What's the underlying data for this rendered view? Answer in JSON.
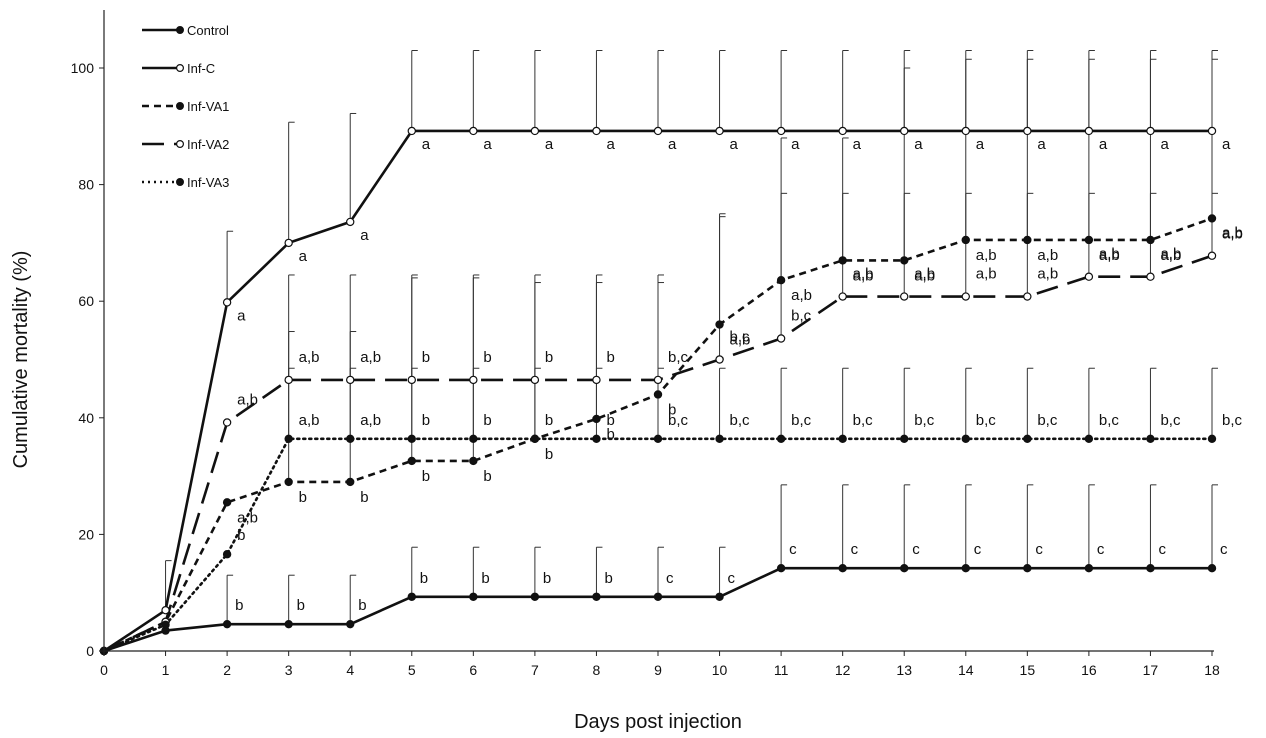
{
  "chart_data": {
    "type": "line",
    "title": "",
    "xlabel": "Days post injection",
    "ylabel": "Cumulative mortality (%)",
    "x": [
      0,
      1,
      2,
      3,
      4,
      5,
      6,
      7,
      8,
      9,
      10,
      11,
      12,
      13,
      14,
      15,
      16,
      17,
      18
    ],
    "xlim": [
      0,
      18
    ],
    "ylim": [
      0,
      100
    ],
    "yticks": [
      0,
      20,
      40,
      60,
      80,
      100
    ],
    "grid": false,
    "legend_position": "top-left",
    "series": [
      {
        "name": "Control",
        "line": "solid",
        "marker": "filled",
        "values": [
          0,
          3.5,
          4.6,
          4.6,
          4.6,
          9.3,
          9.3,
          9.3,
          9.3,
          9.3,
          9.3,
          14.2,
          14.2,
          14.2,
          14.2,
          14.2,
          14.2,
          14.2,
          14.2
        ],
        "error_upper": [
          null,
          null,
          13,
          13,
          13,
          17.8,
          17.8,
          17.8,
          17.8,
          17.8,
          17.8,
          28.5,
          28.5,
          28.5,
          28.5,
          28.5,
          28.5,
          28.5,
          28.5
        ],
        "labels": [
          null,
          null,
          "b",
          "b",
          "b",
          "b",
          "b",
          "b",
          "b",
          "c",
          "c",
          "c",
          "c",
          "c",
          "c",
          "c",
          "c",
          "c",
          "c"
        ]
      },
      {
        "name": "Inf-C",
        "line": "solid",
        "marker": "open",
        "values": [
          0,
          7,
          59.8,
          70,
          73.6,
          89.2,
          89.2,
          89.2,
          89.2,
          89.2,
          89.2,
          89.2,
          89.2,
          89.2,
          89.2,
          89.2,
          89.2,
          89.2,
          89.2
        ],
        "error_upper": [
          null,
          15.5,
          72,
          90.7,
          92.2,
          103,
          103,
          103,
          103,
          103,
          103,
          103,
          103,
          103,
          103,
          103,
          103,
          103,
          103
        ],
        "labels": [
          null,
          null,
          "a",
          "a",
          "a",
          "a",
          "a",
          "a",
          "a",
          "a",
          "a",
          "a",
          "a",
          "a",
          "a",
          "a",
          "a",
          "a",
          "a"
        ]
      },
      {
        "name": "Inf-VA1",
        "line": "dashed",
        "marker": "filled",
        "values": [
          0,
          5,
          25.5,
          29,
          29,
          32.6,
          32.6,
          36.4,
          39.8,
          44,
          56,
          63.6,
          67,
          67,
          70.5,
          70.5,
          70.5,
          70.5,
          74.2
        ],
        "error_upper": [
          null,
          null,
          null,
          54.8,
          54.8,
          64.5,
          64.5,
          64.5,
          64.5,
          64.5,
          75,
          88,
          88,
          100,
          101.5,
          101.5,
          101.5,
          101.5,
          101.5
        ],
        "labels": [
          null,
          null,
          "a,b",
          "b",
          "b",
          "b",
          "b",
          "b",
          "b",
          "b",
          "a,b",
          "a,b",
          "a,b",
          "a,b",
          "a,b",
          "a,b",
          "a,b",
          "a,b",
          "a,b"
        ]
      },
      {
        "name": "Inf-VA2",
        "line": "longdash",
        "marker": "open",
        "values": [
          0,
          5,
          39.2,
          46.5,
          46.5,
          46.5,
          46.5,
          46.5,
          46.5,
          46.5,
          50,
          53.6,
          60.8,
          60.8,
          60.8,
          60.8,
          64.2,
          64.2,
          67.8
        ],
        "error_upper": [
          null,
          null,
          null,
          64.5,
          64.5,
          64,
          64,
          63.2,
          63.2,
          63.2,
          74.5,
          78.5,
          78.5,
          78.5,
          78.5,
          78.5,
          78.5,
          78.5,
          78.5
        ],
        "labels": [
          null,
          null,
          "a,b",
          "a,b",
          "a,b",
          "b",
          "b",
          "b",
          "b",
          "b,c",
          "b,c",
          "b,c",
          "a,b",
          "a,b",
          "a,b",
          "a,b",
          "a,b",
          "a,b",
          "a,b"
        ]
      },
      {
        "name": "Inf-VA3",
        "line": "dotted",
        "marker": "filled",
        "values": [
          0,
          4.5,
          16.6,
          36.4,
          36.4,
          36.4,
          36.4,
          36.4,
          36.4,
          36.4,
          36.4,
          36.4,
          36.4,
          36.4,
          36.4,
          36.4,
          36.4,
          36.4,
          36.4
        ],
        "error_upper": [
          null,
          null,
          null,
          48.5,
          48.5,
          48.5,
          48.5,
          48.5,
          48.5,
          48.5,
          48.5,
          48.5,
          48.5,
          48.5,
          48.5,
          48.5,
          48.5,
          48.5,
          48.5
        ],
        "labels": [
          null,
          null,
          "b",
          "a,b",
          "a,b",
          "b",
          "b",
          "b",
          "b",
          "b,c",
          "b,c",
          "b,c",
          "b,c",
          "b,c",
          "b,c",
          "b,c",
          "b,c",
          "b,c",
          "b,c"
        ]
      }
    ]
  }
}
